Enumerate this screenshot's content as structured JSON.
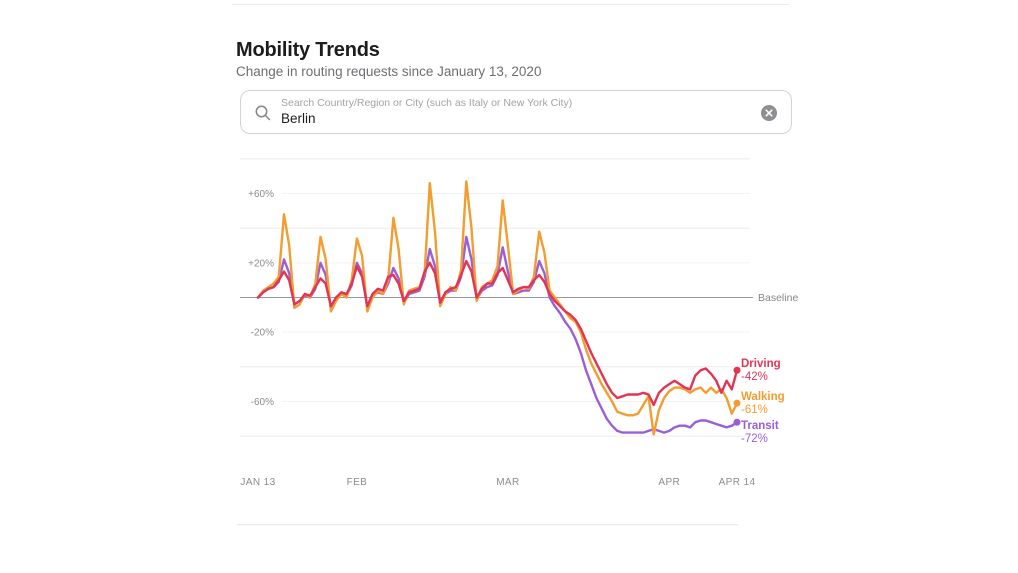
{
  "page": {
    "title": "Mobility Trends",
    "subtitle": "Change in routing requests since January 13, 2020"
  },
  "search": {
    "placeholder": "Search Country/Region or City (such as Italy or New York City)",
    "value": "Berlin",
    "search_icon": "magnifier",
    "clear_icon": "circle-x"
  },
  "chart_data": {
    "type": "line",
    "title": "Mobility Trends",
    "subtitle": "Change in routing requests since January 13, 2020",
    "days": 93,
    "x_axis": {
      "labels": [
        {
          "text": "JAN 13",
          "day": 0
        },
        {
          "text": "FEB",
          "day": 19
        },
        {
          "text": "MAR",
          "day": 48
        },
        {
          "text": "APR",
          "day": 79
        },
        {
          "text": "APR 14",
          "day": 92
        }
      ]
    },
    "y_axis": {
      "unit": "%",
      "range": [
        -80,
        80
      ],
      "tick_labels": [
        "+60%",
        "+20%",
        "-20%",
        "-60%"
      ],
      "tick_values": [
        60,
        20,
        -20,
        -60
      ],
      "gridline_values": [
        80,
        40,
        -40,
        -80
      ],
      "baseline_value": 0,
      "baseline_label": "Baseline"
    },
    "legend_position": "right-of-line-ends",
    "series": [
      {
        "name": "Driving",
        "end_label": "-42%",
        "color": "#e23455",
        "values": [
          0,
          3,
          5,
          6,
          10,
          15,
          10,
          -4,
          -2,
          2,
          1,
          6,
          11,
          8,
          -5,
          0,
          3,
          2,
          8,
          18,
          12,
          -5,
          2,
          5,
          4,
          12,
          13,
          8,
          -2,
          3,
          4,
          5,
          15,
          20,
          14,
          -3,
          3,
          5,
          6,
          13,
          21,
          15,
          0,
          5,
          8,
          8,
          14,
          17,
          10,
          3,
          5,
          6,
          6,
          10,
          13,
          9,
          2,
          -2,
          -5,
          -8,
          -10,
          -13,
          -18,
          -25,
          -32,
          -38,
          -44,
          -50,
          -55,
          -58,
          -57,
          -56,
          -56,
          -56,
          -55,
          -56,
          -62,
          -55,
          -52,
          -50,
          -48,
          -50,
          -52,
          -53,
          -45,
          -42,
          -41,
          -44,
          -48,
          -55,
          -48,
          -53,
          -42
        ]
      },
      {
        "name": "Walking",
        "end_label": "-61%",
        "color": "#f39c2f",
        "values": [
          0,
          4,
          6,
          8,
          12,
          48,
          30,
          -6,
          -4,
          2,
          0,
          8,
          35,
          22,
          -8,
          -2,
          2,
          0,
          10,
          34,
          24,
          -8,
          0,
          4,
          2,
          10,
          46,
          28,
          -4,
          4,
          5,
          6,
          14,
          66,
          38,
          -5,
          2,
          6,
          4,
          16,
          67,
          40,
          -2,
          6,
          8,
          10,
          18,
          56,
          30,
          2,
          4,
          6,
          5,
          12,
          38,
          26,
          4,
          0,
          -4,
          -8,
          -12,
          -14,
          -20,
          -30,
          -38,
          -44,
          -50,
          -55,
          -60,
          -66,
          -67,
          -68,
          -68,
          -67,
          -62,
          -57,
          -79,
          -65,
          -58,
          -54,
          -52,
          -52,
          -53,
          -55,
          -53,
          -52,
          -55,
          -52,
          -55,
          -53,
          -58,
          -67,
          -61
        ]
      },
      {
        "name": "Transit",
        "end_label": "-72%",
        "color": "#9a5ed6",
        "values": [
          0,
          3,
          5,
          6,
          9,
          22,
          14,
          -4,
          -2,
          1,
          0,
          5,
          20,
          13,
          -6,
          -1,
          2,
          1,
          7,
          20,
          14,
          -6,
          1,
          3,
          2,
          8,
          17,
          11,
          -3,
          2,
          3,
          4,
          12,
          28,
          18,
          -4,
          2,
          4,
          4,
          12,
          35,
          22,
          -1,
          4,
          6,
          7,
          13,
          29,
          15,
          2,
          3,
          4,
          4,
          9,
          21,
          14,
          0,
          -5,
          -9,
          -14,
          -18,
          -24,
          -32,
          -42,
          -50,
          -58,
          -64,
          -70,
          -74,
          -77,
          -78,
          -78,
          -78,
          -78,
          -78,
          -77,
          -76,
          -77,
          -78,
          -77,
          -75,
          -74,
          -74,
          -75,
          -72,
          -71,
          -71,
          -72,
          -73,
          -74,
          -75,
          -74,
          -72
        ]
      }
    ]
  }
}
